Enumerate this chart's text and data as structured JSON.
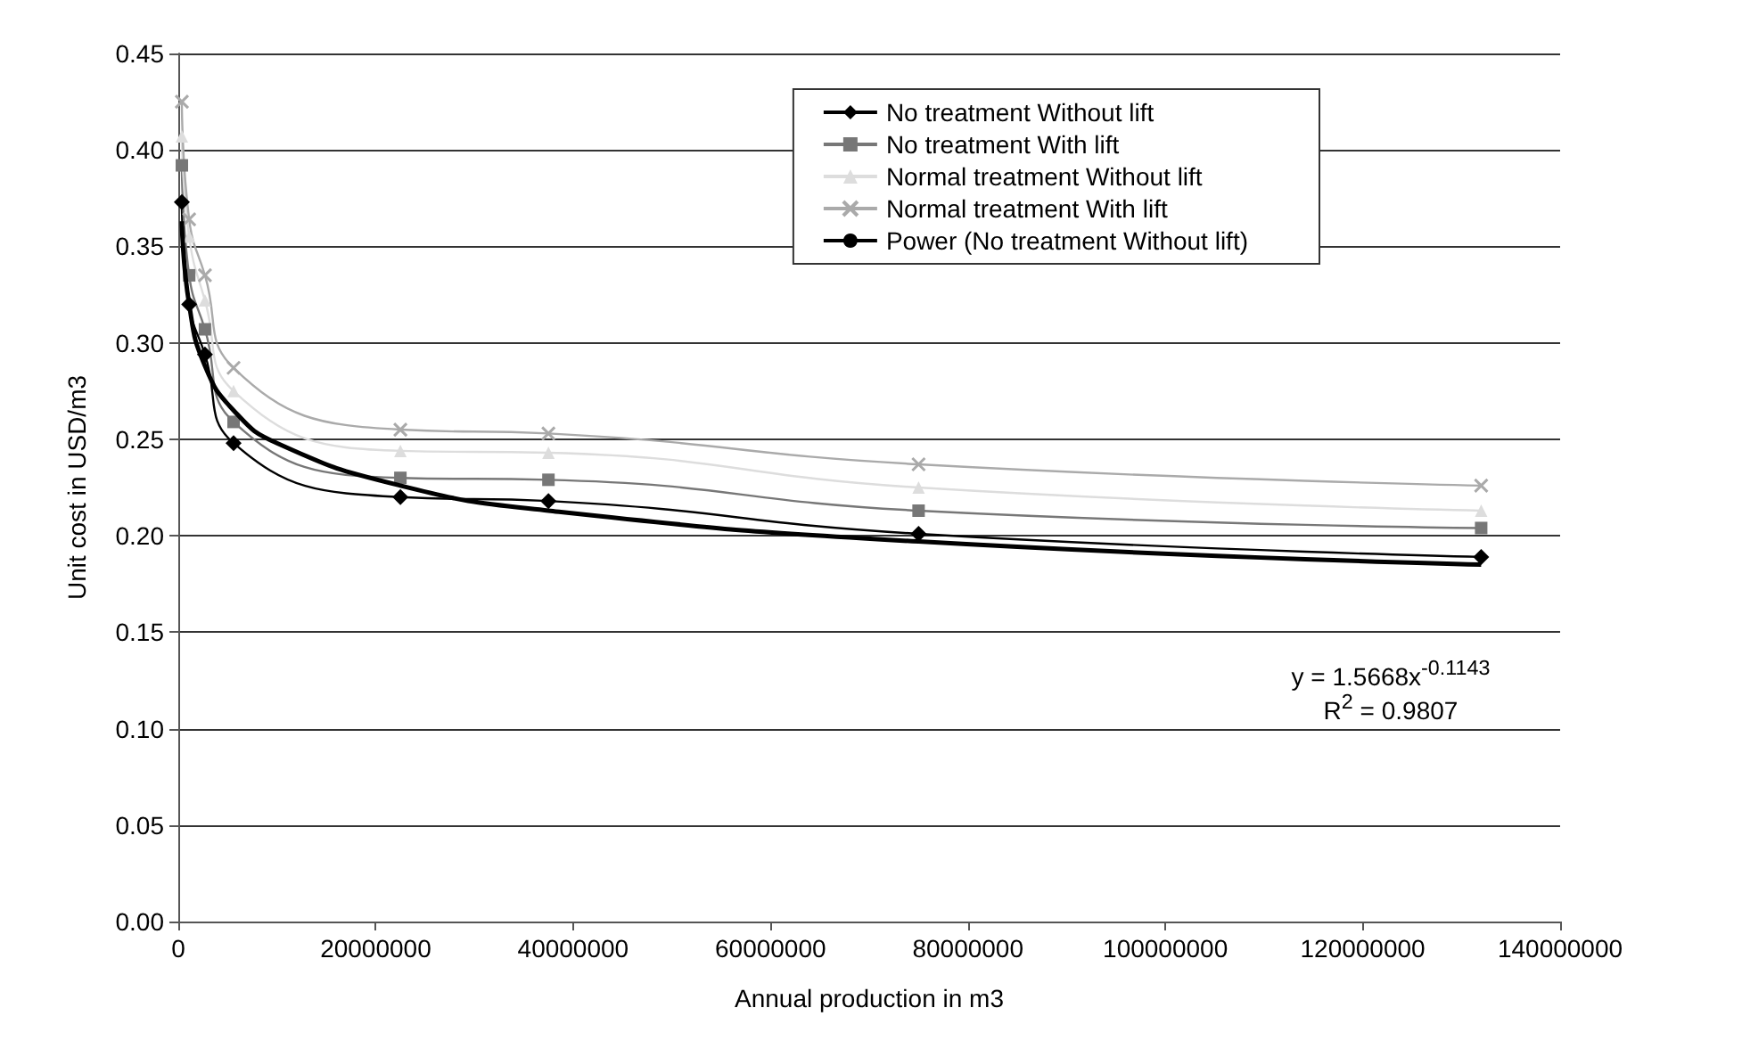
{
  "chart_data": {
    "type": "line",
    "xlabel": "Annual production in m3",
    "ylabel": "Unit cost in USD/m3",
    "x": [
      360000,
      1100000,
      2700000,
      5600000,
      22500000,
      37500000,
      75000000,
      132000000
    ],
    "series": [
      {
        "name": "No treatment Without lift",
        "color": "#000000",
        "marker": "diamond",
        "values": [
          0.373,
          0.32,
          0.294,
          0.248,
          0.22,
          0.218,
          0.201,
          0.189
        ]
      },
      {
        "name": "No treatment With lift",
        "color": "#777777",
        "marker": "square",
        "values": [
          0.392,
          0.335,
          0.307,
          0.259,
          0.23,
          0.229,
          0.213,
          0.204
        ]
      },
      {
        "name": "Normal treatment Without lift",
        "color": "#dddddd",
        "marker": "triangle",
        "values": [
          0.407,
          0.355,
          0.322,
          0.275,
          0.244,
          0.243,
          0.225,
          0.213
        ]
      },
      {
        "name": "Normal treatment With lift",
        "color": "#aaaaaa",
        "marker": "cross",
        "values": [
          0.425,
          0.364,
          0.335,
          0.287,
          0.255,
          0.253,
          0.237,
          0.226
        ]
      },
      {
        "name": "Power (No treatment Without lift)",
        "color": "#000000",
        "marker": "none",
        "x": [
          360000,
          1100000,
          2700000,
          5600000,
          10000000,
          22500000,
          37500000,
          75000000,
          132000000
        ],
        "values": [
          0.363,
          0.32,
          0.288,
          0.265,
          0.248,
          0.226,
          0.213,
          0.197,
          0.185
        ]
      }
    ],
    "xlim": [
      0,
      140000000
    ],
    "xticks": [
      0,
      20000000,
      40000000,
      60000000,
      80000000,
      100000000,
      120000000,
      140000000
    ],
    "ylim": [
      0,
      0.45
    ],
    "yticks": [
      {
        "value": 0,
        "label": "0.00"
      },
      {
        "value": 0.05,
        "label": "0.05"
      },
      {
        "value": 0.1,
        "label": "0.10"
      },
      {
        "value": 0.15,
        "label": "0.15"
      },
      {
        "value": 0.2,
        "label": "0.20"
      },
      {
        "value": 0.25,
        "label": "0.25"
      },
      {
        "value": 0.3,
        "label": "0.30"
      },
      {
        "value": 0.35,
        "label": "0.35"
      },
      {
        "value": 0.4,
        "label": "0.40"
      },
      {
        "value": 0.45,
        "label": "0.45"
      }
    ],
    "grid": "y",
    "legend": "top right",
    "annotations": [
      "y = 1.5668x$^{-0.1143}$",
      "R$^{2}$ = 0.9807"
    ]
  }
}
